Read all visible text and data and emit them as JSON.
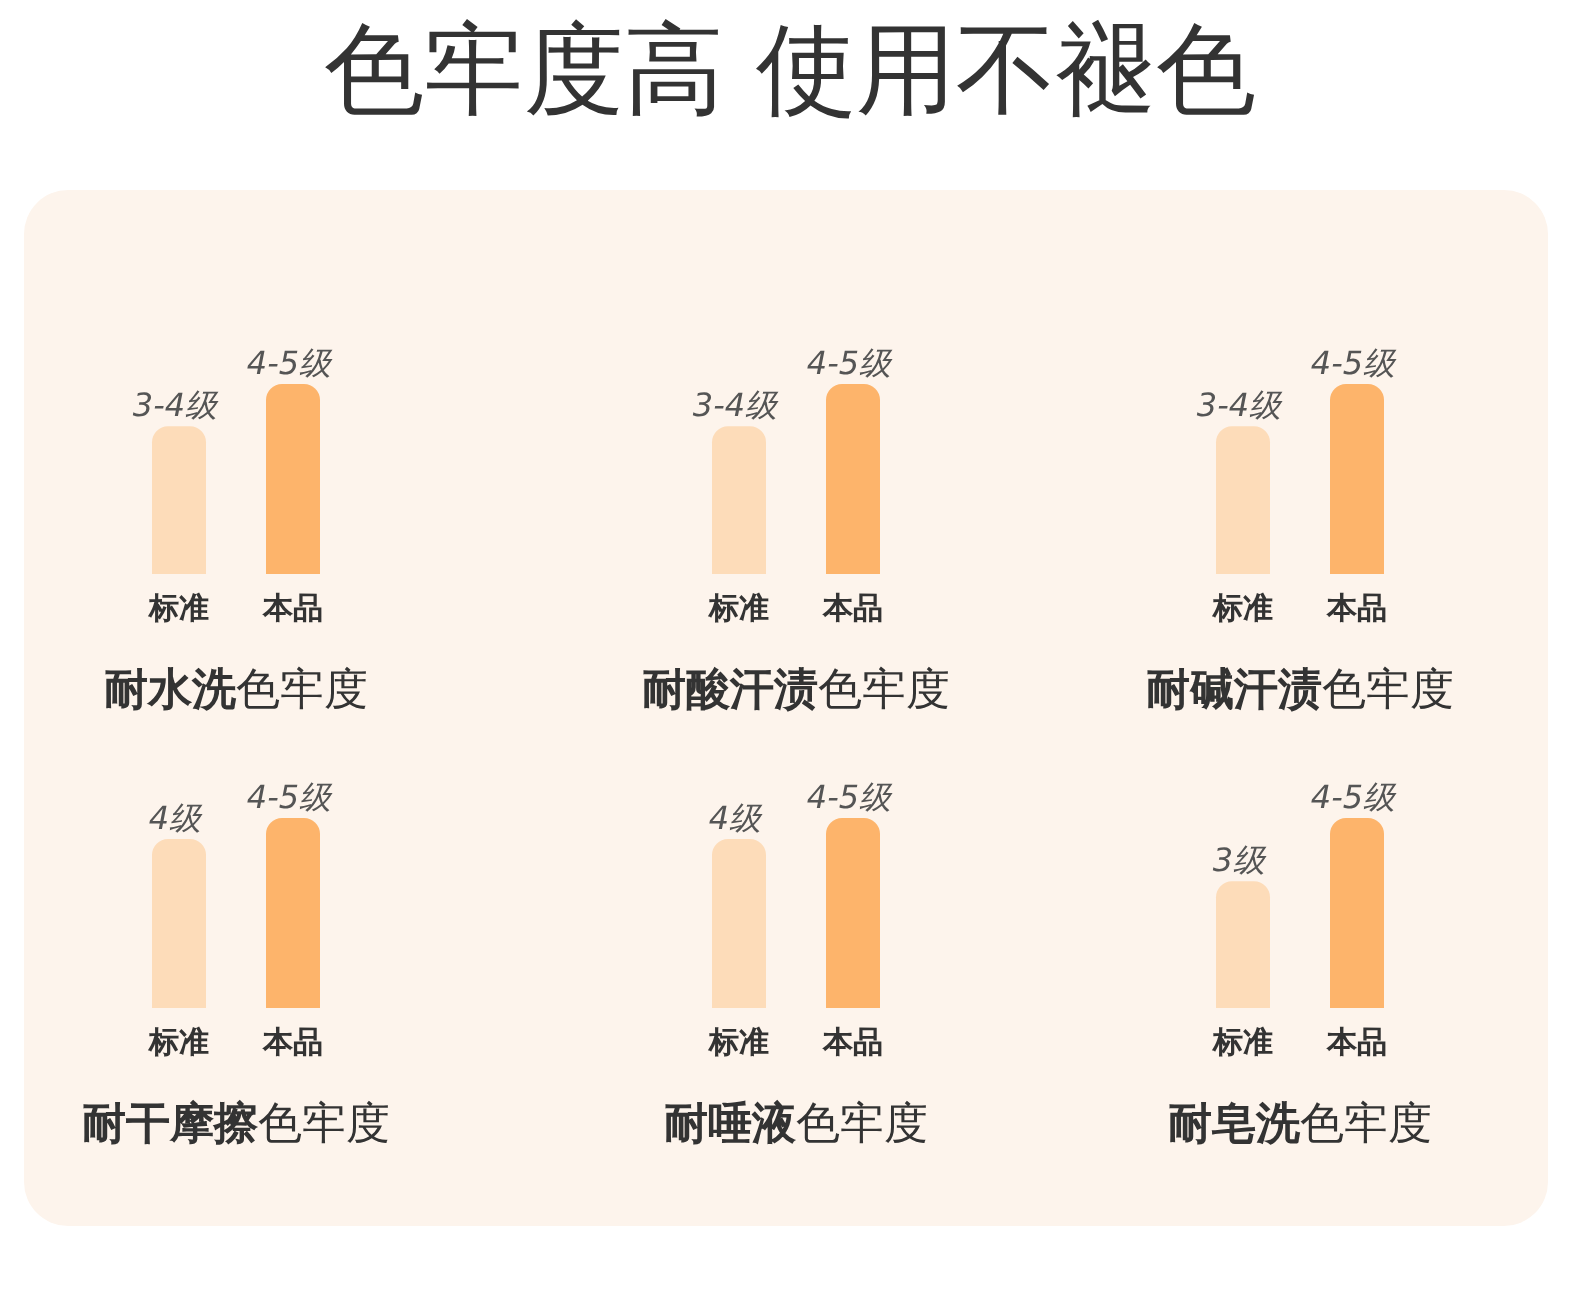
{
  "chart_data": [
    {
      "type": "other",
      "title": "色牢度高 使用不褪色"
    },
    {
      "type": "bar",
      "xlabel": "耐水洗色牢度",
      "ylim": [
        0,
        4.5
      ],
      "categories": [
        "标准",
        "本品"
      ],
      "values": [
        3.5,
        4.5
      ],
      "colors": [
        "#fddcb9",
        "#fdb46b"
      ],
      "value_labels": [
        "3-4级",
        "4-5级"
      ]
    },
    {
      "type": "bar",
      "xlabel": "耐酸汗渍色牢度",
      "ylim": [
        0,
        4.5
      ],
      "categories": [
        "标准",
        "本品"
      ],
      "values": [
        3.5,
        4.5
      ],
      "colors": [
        "#fddcb9",
        "#fdb46b"
      ],
      "value_labels": [
        "3-4级",
        "4-5级"
      ]
    },
    {
      "type": "bar",
      "xlabel": "耐碱汗渍色牢度",
      "ylim": [
        0,
        4.5
      ],
      "categories": [
        "标准",
        "本品"
      ],
      "values": [
        3.5,
        4.5
      ],
      "colors": [
        "#fddcb9",
        "#fdb46b"
      ],
      "value_labels": [
        "3-4级",
        "4-5级"
      ]
    },
    {
      "type": "bar",
      "xlabel": "耐干摩擦色牢度",
      "ylim": [
        0,
        4.5
      ],
      "categories": [
        "标准",
        "本品"
      ],
      "values": [
        4,
        4.5
      ],
      "colors": [
        "#fddcb9",
        "#fdb46b"
      ],
      "value_labels": [
        "4级",
        "4-5级"
      ]
    },
    {
      "type": "bar",
      "xlabel": "耐唾液色牢度",
      "ylim": [
        0,
        4.5
      ],
      "categories": [
        "标准",
        "本品"
      ],
      "values": [
        4,
        4.5
      ],
      "colors": [
        "#fddcb9",
        "#fdb46b"
      ],
      "value_labels": [
        "4级",
        "4-5级"
      ]
    },
    {
      "type": "bar",
      "xlabel": "耐皂洗色牢度",
      "ylim": [
        0,
        4.5
      ],
      "categories": [
        "标准",
        "本品"
      ],
      "values": [
        3,
        4.5
      ],
      "colors": [
        "#fddcb9",
        "#fdb46b"
      ],
      "value_labels": [
        "3级",
        "4-5级"
      ]
    }
  ]
}
